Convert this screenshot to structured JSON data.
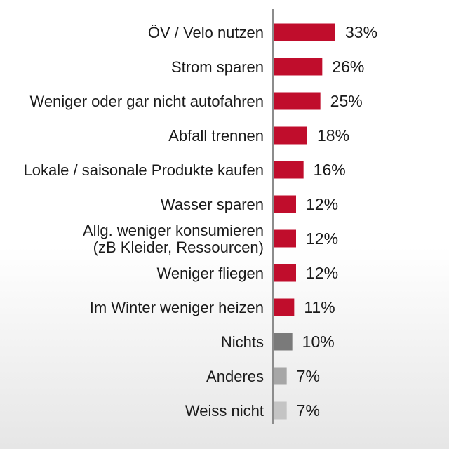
{
  "chart_data": {
    "type": "bar",
    "orientation": "horizontal",
    "categories": [
      "ÖV / Velo nutzen",
      "Strom sparen",
      "Weniger oder gar nicht autofahren",
      "Abfall trennen",
      "Lokale / saisonale Produkte kaufen",
      "Wasser sparen",
      "Allg. weniger konsumieren\n(zB Kleider, Ressourcen)",
      "Weniger fliegen",
      "Im Winter weniger heizen",
      "Nichts",
      "Anderes",
      "Weiss nicht"
    ],
    "values": [
      33,
      26,
      25,
      18,
      16,
      12,
      12,
      12,
      11,
      10,
      7,
      7
    ],
    "value_labels": [
      "33%",
      "26%",
      "25%",
      "18%",
      "16%",
      "12%",
      "12%",
      "12%",
      "11%",
      "10%",
      "7%",
      "7%"
    ],
    "bar_colors": [
      "#c00d2c",
      "#c00d2c",
      "#c00d2c",
      "#c00d2c",
      "#c00d2c",
      "#c00d2c",
      "#c00d2c",
      "#c00d2c",
      "#c00d2c",
      "#7a7a7a",
      "#a6a6a6",
      "#c4c4c4"
    ],
    "xlim": [
      0,
      100
    ],
    "grid": false,
    "legend": "none",
    "title": "",
    "xlabel": "",
    "ylabel": ""
  }
}
